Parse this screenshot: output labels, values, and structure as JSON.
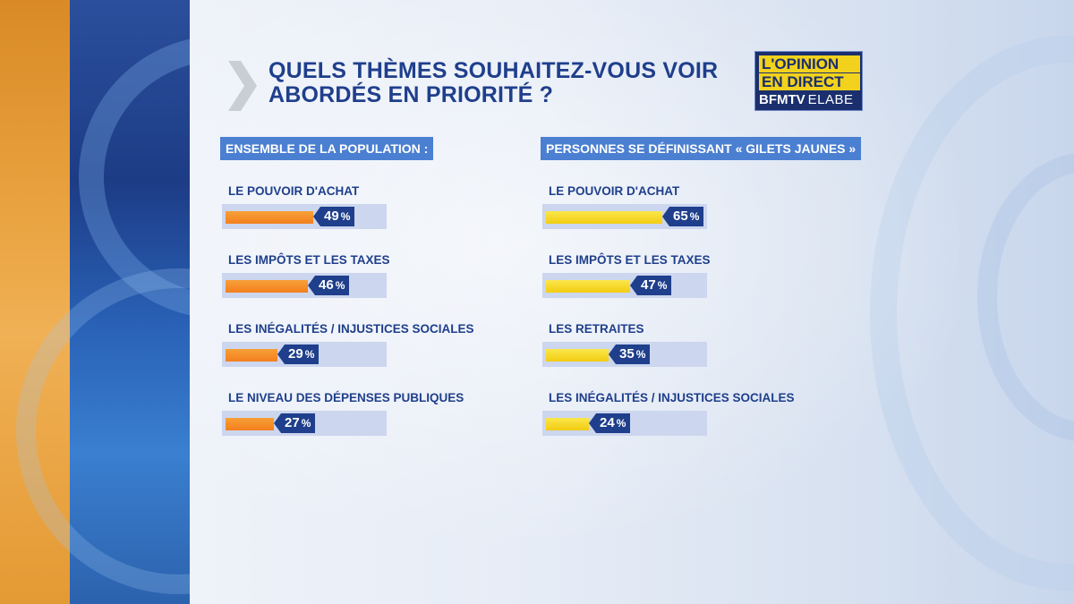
{
  "title": "QUELS THÈMES SOUHAITEZ-VOUS VOIR ABORDÉS EN PRIORITÉ ?",
  "logo": {
    "line1": "L'OPINION",
    "line2": "EN DIRECT",
    "brand": "BFMTV",
    "partner": "ELABE"
  },
  "colors": {
    "accent_blue": "#1f3f8c",
    "header_blue": "#4b7fd1",
    "orange": "#f47f1e",
    "yellow": "#f2cc12"
  },
  "chart_data": [
    {
      "type": "bar",
      "title": "ENSEMBLE DE LA POPULATION :",
      "categories": [
        "LE POUVOIR D'ACHAT",
        "LES IMPÔTS ET LES TAXES",
        "LES INÉGALITÉS / INJUSTICES SOCIALES",
        "LE NIVEAU DES DÉPENSES PUBLIQUES"
      ],
      "values": [
        49,
        46,
        29,
        27
      ],
      "unit": "%",
      "color": "orange",
      "ylim": [
        0,
        100
      ]
    },
    {
      "type": "bar",
      "title": "PERSONNES SE DÉFINISSANT « GILETS JAUNES »",
      "categories": [
        "LE POUVOIR D'ACHAT",
        "LES IMPÔTS ET LES TAXES",
        "LES RETRAITES",
        "LES INÉGALITÉS / INJUSTICES SOCIALES"
      ],
      "values": [
        65,
        47,
        35,
        24
      ],
      "unit": "%",
      "color": "yellow",
      "ylim": [
        0,
        100
      ]
    }
  ]
}
